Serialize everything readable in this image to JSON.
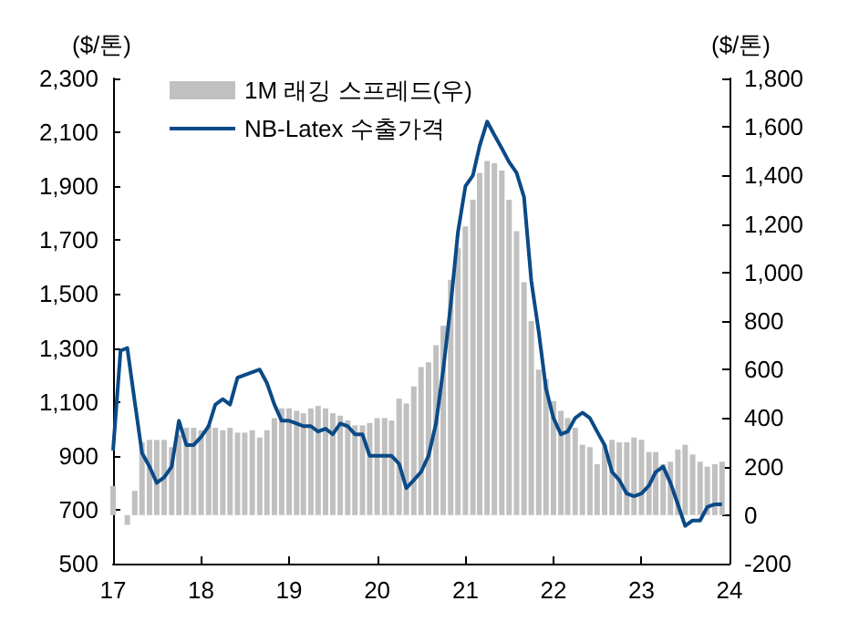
{
  "chart_data": {
    "type": "bar",
    "ylabel": "($/톤)",
    "y2label": "($/톤)",
    "x": [
      "2017-01",
      "2017-02",
      "2017-03",
      "2017-04",
      "2017-05",
      "2017-06",
      "2017-07",
      "2017-08",
      "2017-09",
      "2017-10",
      "2017-11",
      "2017-12",
      "2018-01",
      "2018-02",
      "2018-03",
      "2018-04",
      "2018-05",
      "2018-06",
      "2018-07",
      "2018-08",
      "2018-09",
      "2018-10",
      "2018-11",
      "2018-12",
      "2019-01",
      "2019-02",
      "2019-03",
      "2019-04",
      "2019-05",
      "2019-06",
      "2019-07",
      "2019-08",
      "2019-09",
      "2019-10",
      "2019-11",
      "2019-12",
      "2020-01",
      "2020-02",
      "2020-03",
      "2020-04",
      "2020-05",
      "2020-06",
      "2020-07",
      "2020-08",
      "2020-09",
      "2020-10",
      "2020-11",
      "2020-12",
      "2021-01",
      "2021-02",
      "2021-03",
      "2021-04",
      "2021-05",
      "2021-06",
      "2021-07",
      "2021-08",
      "2021-09",
      "2021-10",
      "2021-11",
      "2021-12",
      "2022-01",
      "2022-02",
      "2022-03",
      "2022-04",
      "2022-05",
      "2022-06",
      "2022-07",
      "2022-08",
      "2022-09",
      "2022-10",
      "2022-11",
      "2022-12",
      "2023-01",
      "2023-02",
      "2023-03",
      "2023-04",
      "2023-05",
      "2023-06",
      "2023-07",
      "2023-08",
      "2023-09",
      "2023-10",
      "2023-11",
      "2023-12"
    ],
    "series": [
      {
        "name": "1M 래깅 스프레드(우)",
        "axis": "y2",
        "color": "#c0c0c0",
        "values": [
          120,
          null,
          -40,
          100,
          300,
          310,
          310,
          310,
          280,
          330,
          360,
          360,
          350,
          370,
          360,
          350,
          360,
          340,
          340,
          350,
          320,
          350,
          400,
          440,
          440,
          430,
          420,
          440,
          450,
          440,
          420,
          410,
          390,
          370,
          370,
          380,
          400,
          400,
          390,
          480,
          460,
          530,
          610,
          630,
          700,
          780,
          970,
          1100,
          1190,
          1300,
          1410,
          1460,
          1450,
          1420,
          1300,
          1170,
          960,
          800,
          600,
          560,
          470,
          430,
          400,
          360,
          290,
          280,
          210,
          290,
          310,
          300,
          300,
          320,
          310,
          260,
          260,
          210,
          220,
          270,
          290,
          250,
          220,
          200,
          210,
          220
        ]
      },
      {
        "name": "NB-Latex 수출가격",
        "type": "line",
        "color": "#0b4a87",
        "values": [
          920,
          1290,
          1300,
          1100,
          910,
          860,
          800,
          820,
          860,
          1030,
          940,
          940,
          970,
          1010,
          1090,
          1110,
          1090,
          1190,
          1200,
          1210,
          1220,
          1170,
          1090,
          1030,
          1030,
          1020,
          1010,
          1010,
          990,
          1000,
          980,
          1020,
          1010,
          980,
          980,
          900,
          900,
          900,
          900,
          870,
          780,
          810,
          840,
          900,
          1020,
          1220,
          1460,
          1730,
          1900,
          1940,
          2050,
          2140,
          2090,
          2040,
          1990,
          1950,
          1860,
          1550,
          1360,
          1150,
          1040,
          980,
          990,
          1040,
          1060,
          1040,
          990,
          940,
          840,
          810,
          760,
          750,
          760,
          790,
          840,
          860,
          800,
          720,
          640,
          660,
          660,
          710,
          720,
          720
        ]
      }
    ],
    "xlim": [
      "2017-01",
      "2024-01"
    ],
    "xticks": [
      {
        "value": "2017-01",
        "label": "17"
      },
      {
        "value": "2018-01",
        "label": "18"
      },
      {
        "value": "2019-01",
        "label": "19"
      },
      {
        "value": "2020-01",
        "label": "20"
      },
      {
        "value": "2021-01",
        "label": "21"
      },
      {
        "value": "2022-01",
        "label": "22"
      },
      {
        "value": "2023-01",
        "label": "23"
      },
      {
        "value": "2024-01",
        "label": "24"
      }
    ],
    "ylim": [
      500,
      2300
    ],
    "yticks": [
      500,
      700,
      900,
      {
        "value": 1100,
        "label": "1,100"
      },
      {
        "value": 1300,
        "label": "1,300"
      },
      {
        "value": 1500,
        "label": "1,500"
      },
      {
        "value": 1700,
        "label": "1,700"
      },
      {
        "value": 1900,
        "label": "1,900"
      },
      {
        "value": 2100,
        "label": "2,100"
      },
      {
        "value": 2300,
        "label": "2,300"
      }
    ],
    "y2lim": [
      -200,
      1800
    ],
    "y2ticks": [
      -200,
      0,
      200,
      400,
      600,
      800,
      {
        "value": 1000,
        "label": "1,000"
      },
      {
        "value": 1200,
        "label": "1,200"
      },
      {
        "value": 1400,
        "label": "1,400"
      },
      {
        "value": 1600,
        "label": "1,600"
      },
      {
        "value": 1800,
        "label": "1,800"
      }
    ],
    "legend": "top left",
    "grid": false,
    "marker": "none",
    "line_style": "solid"
  }
}
